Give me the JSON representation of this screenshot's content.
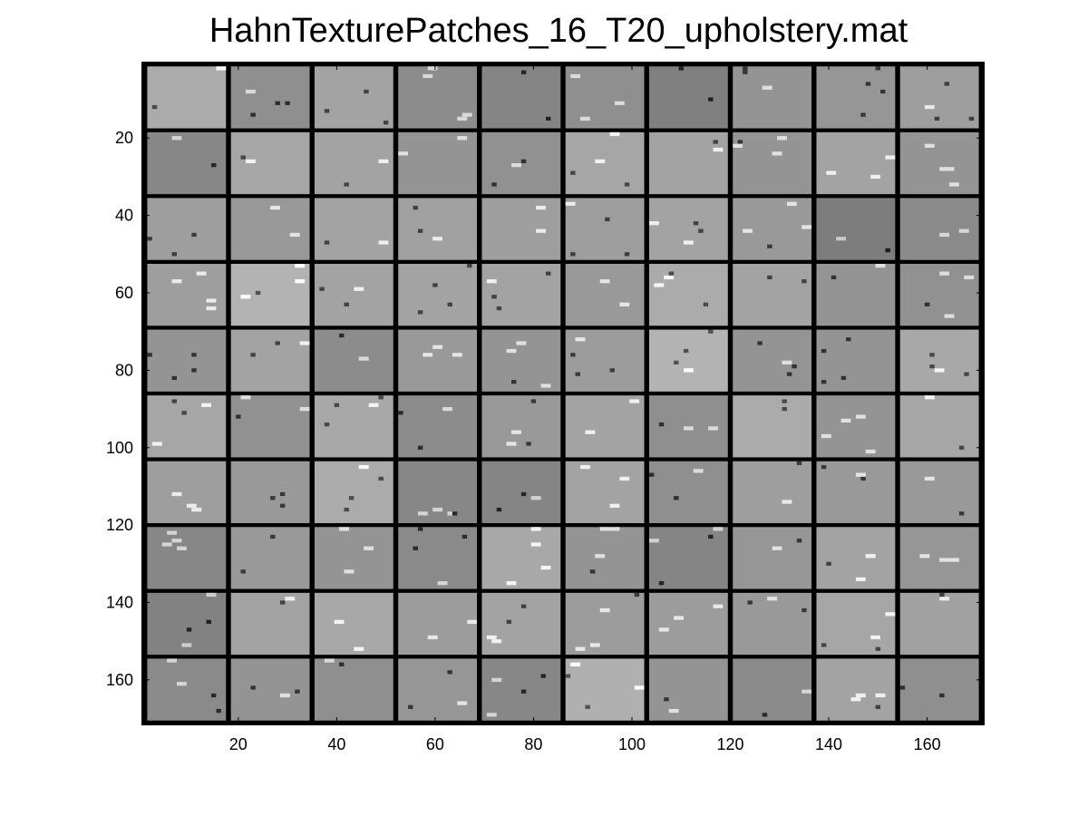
{
  "chart_data": {
    "type": "heatmap",
    "title": "HahnTexturePatches_16_T20_upholstery.mat",
    "xlabel": "",
    "ylabel": "",
    "xlim": [
      0.5,
      171.5
    ],
    "ylim": [
      0.5,
      171.5
    ],
    "y_reversed": true,
    "colormap": "gray",
    "grid_rows": 10,
    "grid_cols": 10,
    "patch_size": 16,
    "separator_width": 1,
    "x_ticks": [
      20,
      40,
      60,
      80,
      100,
      120,
      140,
      160
    ],
    "y_ticks": [
      20,
      40,
      60,
      80,
      100,
      120,
      140,
      160
    ],
    "x_tick_labels": [
      "20",
      "40",
      "60",
      "80",
      "100",
      "120",
      "140",
      "160"
    ],
    "y_tick_labels": [
      "20",
      "40",
      "60",
      "80",
      "100",
      "120",
      "140",
      "160"
    ],
    "patch_mean_gray": [
      [
        0.67,
        0.56,
        0.64,
        0.55,
        0.52,
        0.56,
        0.5,
        0.58,
        0.59,
        0.62
      ],
      [
        0.53,
        0.65,
        0.64,
        0.58,
        0.57,
        0.65,
        0.64,
        0.58,
        0.64,
        0.58
      ],
      [
        0.62,
        0.6,
        0.64,
        0.63,
        0.62,
        0.62,
        0.64,
        0.6,
        0.49,
        0.54
      ],
      [
        0.62,
        0.7,
        0.64,
        0.64,
        0.64,
        0.6,
        0.67,
        0.64,
        0.58,
        0.57
      ],
      [
        0.58,
        0.64,
        0.55,
        0.6,
        0.58,
        0.61,
        0.7,
        0.58,
        0.58,
        0.66
      ],
      [
        0.65,
        0.57,
        0.66,
        0.55,
        0.6,
        0.64,
        0.56,
        0.67,
        0.58,
        0.65
      ],
      [
        0.62,
        0.6,
        0.67,
        0.53,
        0.52,
        0.64,
        0.56,
        0.62,
        0.6,
        0.6
      ],
      [
        0.53,
        0.6,
        0.58,
        0.54,
        0.66,
        0.58,
        0.52,
        0.59,
        0.64,
        0.59
      ],
      [
        0.51,
        0.64,
        0.66,
        0.61,
        0.64,
        0.61,
        0.61,
        0.6,
        0.65,
        0.63
      ],
      [
        0.54,
        0.58,
        0.56,
        0.59,
        0.53,
        0.69,
        0.58,
        0.54,
        0.64,
        0.56
      ]
    ]
  }
}
